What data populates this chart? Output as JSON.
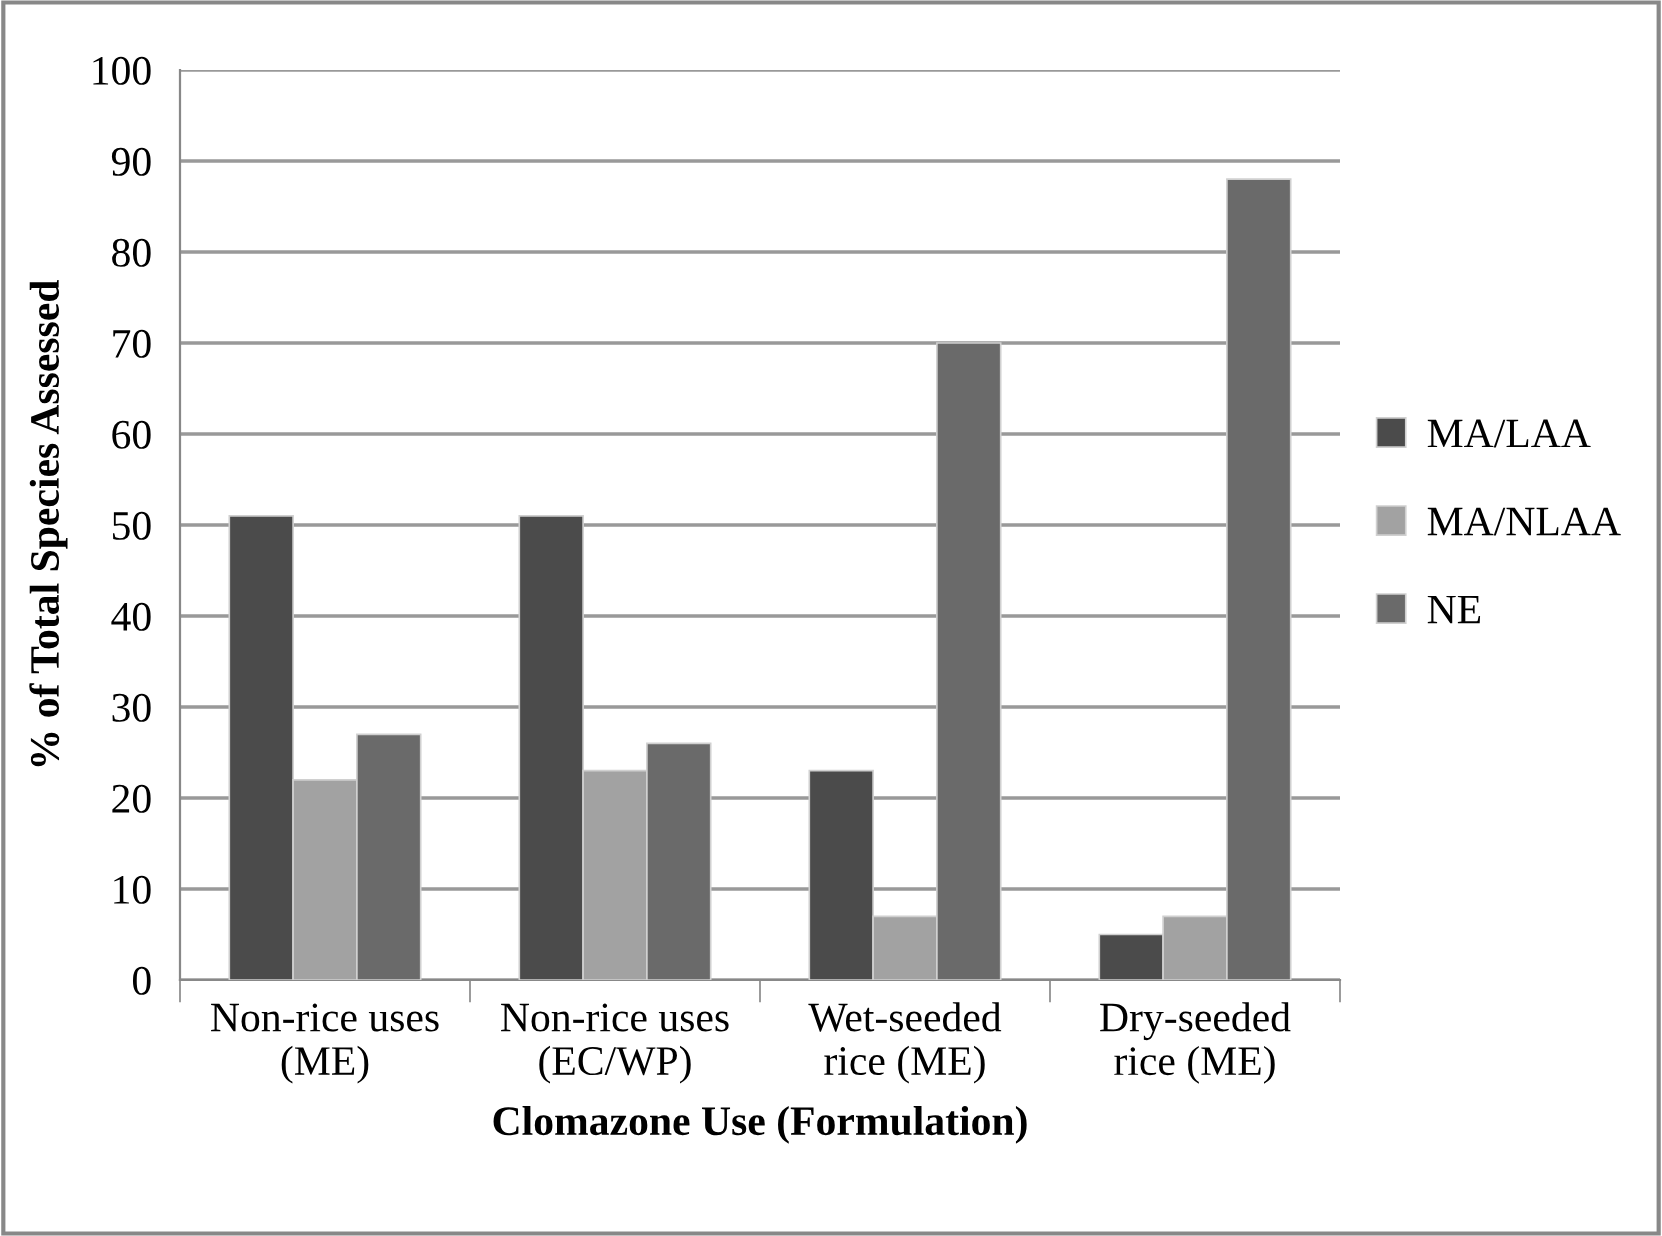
{
  "chart_data": {
    "type": "bar",
    "xlabel": "Clomazone Use (Formulation)",
    "ylabel": "% of Total Species Assessed",
    "categories": [
      "Non-rice uses\n(ME)",
      "Non-rice uses\n(EC/WP)",
      "Wet-seeded\nrice (ME)",
      "Dry-seeded\nrice (ME)"
    ],
    "series": [
      {
        "name": "MA/LAA",
        "color": "#4b4b4b",
        "values": [
          51,
          51,
          23,
          5
        ]
      },
      {
        "name": "MA/NLAA",
        "color": "#a2a2a2",
        "values": [
          22,
          23,
          7,
          7
        ]
      },
      {
        "name": "NE",
        "color": "#6a6a6a",
        "values": [
          27,
          26,
          70,
          88
        ]
      }
    ],
    "ylim": [
      0,
      100
    ],
    "yticks": [
      0,
      10,
      20,
      30,
      40,
      50,
      60,
      70,
      80,
      90,
      100
    ],
    "grid": "y",
    "legend": "right"
  }
}
